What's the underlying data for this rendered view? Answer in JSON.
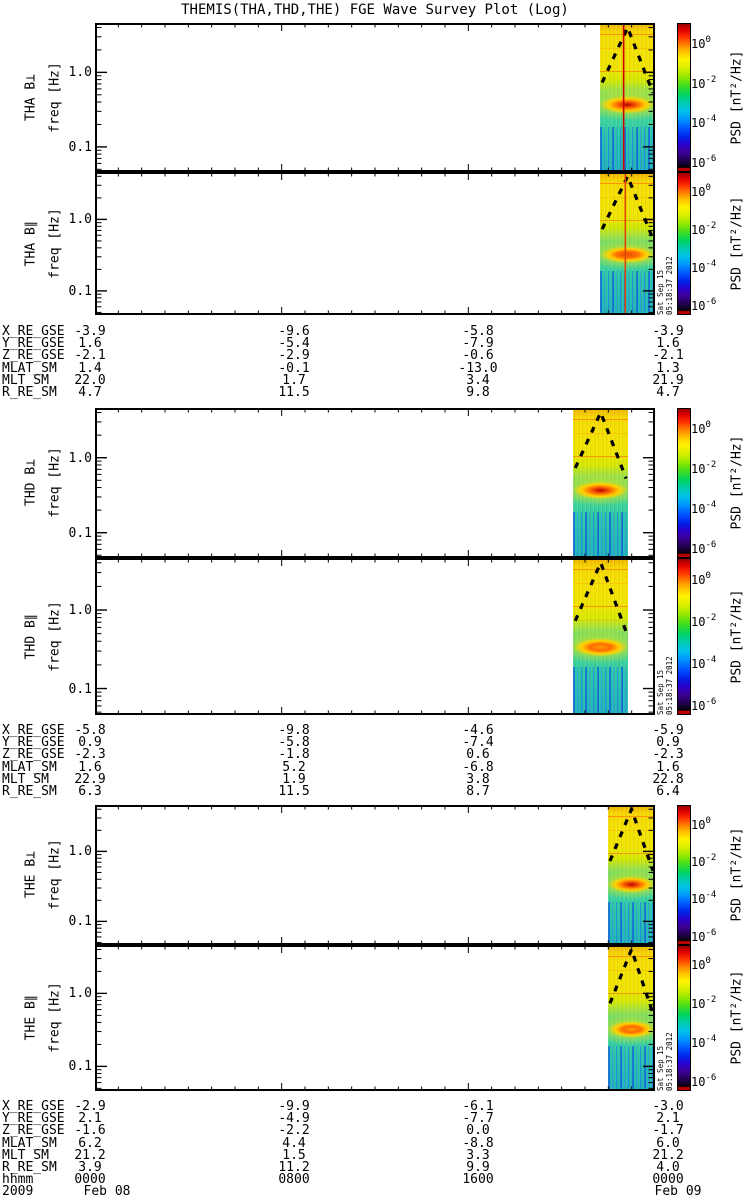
{
  "title": "THEMIS(THA,THD,THE) FGE Wave Survey Plot (Log)",
  "colors": {
    "background": "#ffffff",
    "axis": "#000000",
    "text": "#000000",
    "fci_overlay_line": "#000000"
  },
  "chart_data": {
    "type": "heatmap",
    "title": "THEMIS(THA,THD,THE) FGE Wave Survey Plot (Log)",
    "panels": [
      {
        "id": "tha-bperp",
        "probe": "THA",
        "component": "B⊥",
        "panel_label": "THA B⊥",
        "freq_label": "freq [Hz]",
        "time_coverage_frac": [
          0.902,
          1.0
        ],
        "wave_blob": {
          "y_frac": 0.55,
          "freq_hz": 0.33,
          "strength": "strong"
        },
        "marker_line": {
          "x_frac": 0.944,
          "color": "#cc0000"
        },
        "timestamp": ""
      },
      {
        "id": "tha-bpar",
        "probe": "THA",
        "component": "B∥",
        "panel_label": "THA B∥",
        "freq_label": "freq [Hz]",
        "time_coverage_frac": [
          0.902,
          1.0
        ],
        "wave_blob": {
          "y_frac": 0.58,
          "freq_hz": 0.3,
          "strength": "medium"
        },
        "marker_line": {
          "x_frac": 0.947,
          "color": "#dd4400"
        },
        "timestamp": "Sat Sep 15 05:18:37 2012"
      },
      {
        "id": "thd-bperp",
        "probe": "THD",
        "component": "B⊥",
        "panel_label": "THD B⊥",
        "freq_label": "freq [Hz]",
        "time_coverage_frac": [
          0.854,
          0.952
        ],
        "wave_blob": {
          "y_frac": 0.55,
          "freq_hz": 0.33,
          "strength": "strong"
        },
        "marker_line": null,
        "timestamp": ""
      },
      {
        "id": "thd-bpar",
        "probe": "THD",
        "component": "B∥",
        "panel_label": "THD B∥",
        "freq_label": "freq [Hz]",
        "time_coverage_frac": [
          0.854,
          0.952
        ],
        "wave_blob": {
          "y_frac": 0.57,
          "freq_hz": 0.31,
          "strength": "weak"
        },
        "marker_line": null,
        "timestamp": "Sat Sep 15 05:18:37 2012"
      },
      {
        "id": "the-bperp",
        "probe": "THE",
        "component": "B⊥",
        "panel_label": "THE B⊥",
        "freq_label": "freq [Hz]",
        "time_coverage_frac": [
          0.916,
          1.0
        ],
        "wave_blob": {
          "y_frac": 0.57,
          "freq_hz": 0.31,
          "strength": "strong"
        },
        "marker_line": null,
        "timestamp": ""
      },
      {
        "id": "the-bpar",
        "probe": "THE",
        "component": "B∥",
        "panel_label": "THE B∥",
        "freq_label": "freq [Hz]",
        "time_coverage_frac": [
          0.916,
          1.0
        ],
        "wave_blob": {
          "y_frac": 0.58,
          "freq_hz": 0.3,
          "strength": "weak"
        },
        "marker_line": null,
        "timestamp": "Sat Sep 15 05:18:37 2012"
      }
    ],
    "freq_axis": {
      "label": "freq [Hz]",
      "scale": "log",
      "range_hz": [
        0.046,
        4.6
      ],
      "major_ticks": [
        {
          "value": 1.0,
          "label": "1.0"
        },
        {
          "value": 0.1,
          "label": "0.1"
        }
      ],
      "minor_tick_values": [
        4,
        3,
        2,
        0.9,
        0.8,
        0.7,
        0.6,
        0.5,
        0.4,
        0.3,
        0.2,
        0.09,
        0.08,
        0.07,
        0.06,
        0.05
      ]
    },
    "time_axis": {
      "span_hours": 24,
      "major_tick_hours": [
        0,
        8,
        16,
        24
      ],
      "minor_tick_step_hours": 1,
      "hhmm_label": "hhmm",
      "hhmm_values": [
        "0000",
        "0800",
        "1600",
        "0000"
      ],
      "year_label": "2009",
      "date_labels": [
        "Feb 08",
        "Feb 09"
      ]
    },
    "colorbar": {
      "label": "PSD [nT²/Hz]",
      "exp_top": 1,
      "exp_bottom": -6.5,
      "ticks": [
        {
          "mantissa": "10",
          "exp": "0"
        },
        {
          "mantissa": "10",
          "exp": "-2"
        },
        {
          "mantissa": "10",
          "exp": "-4"
        },
        {
          "mantissa": "10",
          "exp": "-6"
        }
      ],
      "colormap_stops": [
        "#990000 0%",
        "#e00000 4%",
        "#ff3300 9%",
        "#ff7f00 14%",
        "#ffc200 19%",
        "#fff200 24%",
        "#d8ef00 30%",
        "#93e800 36%",
        "#3fdd1e 42%",
        "#00d460 48%",
        "#00ccaa 53%",
        "#00c3e8 59%",
        "#0095ff 65%",
        "#0055ff 71%",
        "#0022e8 77%",
        "#2b00cc 82%",
        "#3d0099 87%",
        "#2b0066 91%",
        "#150033 95%",
        "#000000 97.5%",
        "#bb0000 98.2%",
        "#bb0000 100%"
      ]
    },
    "ephemeris_tables": [
      {
        "section": "THA",
        "rows": [
          {
            "label": "X_RE_GSE",
            "values": [
              "-3.9",
              "-9.6",
              "-5.8",
              "-3.9"
            ]
          },
          {
            "label": "Y_RE_GSE",
            "values": [
              "1.6",
              "-5.4",
              "-7.9",
              "1.6"
            ]
          },
          {
            "label": "Z_RE_GSE",
            "values": [
              "-2.1",
              "-2.9",
              "-0.6",
              "-2.1"
            ]
          },
          {
            "label": "MLAT_SM",
            "values": [
              "1.4",
              "-0.1",
              "-13.0",
              "1.3"
            ]
          },
          {
            "label": "MLT_SM",
            "values": [
              "22.0",
              "1.7",
              "3.4",
              "21.9"
            ]
          },
          {
            "label": "R_RE_SM",
            "values": [
              "4.7",
              "11.5",
              "9.8",
              "4.7"
            ]
          }
        ]
      },
      {
        "section": "THD",
        "rows": [
          {
            "label": "X_RE_GSE",
            "values": [
              "-5.8",
              "-9.8",
              "-4.6",
              "-5.9"
            ]
          },
          {
            "label": "Y_RE_GSE",
            "values": [
              "0.9",
              "-5.8",
              "-7.4",
              "0.9"
            ]
          },
          {
            "label": "Z_RE_GSE",
            "values": [
              "-2.3",
              "-1.8",
              "0.6",
              "-2.3"
            ]
          },
          {
            "label": "MLAT_SM",
            "values": [
              "1.6",
              "5.2",
              "-6.8",
              "1.6"
            ]
          },
          {
            "label": "MLT_SM",
            "values": [
              "22.9",
              "1.9",
              "3.8",
              "22.8"
            ]
          },
          {
            "label": "R_RE_SM",
            "values": [
              "6.3",
              "11.5",
              "8.7",
              "6.4"
            ]
          }
        ]
      },
      {
        "section": "THE",
        "rows": [
          {
            "label": "X_RE_GSE",
            "values": [
              "-2.9",
              "-9.9",
              "-6.1",
              "-3.0"
            ]
          },
          {
            "label": "Y_RE_GSE",
            "values": [
              "2.1",
              "-4.9",
              "-7.7",
              "2.1"
            ]
          },
          {
            "label": "Z_RE_GSE",
            "values": [
              "-1.6",
              "-2.2",
              "0.0",
              "-1.7"
            ]
          },
          {
            "label": "MLAT_SM",
            "values": [
              "6.2",
              "4.4",
              "-8.8",
              "6.0"
            ]
          },
          {
            "label": "MLT_SM",
            "values": [
              "21.2",
              "1.5",
              "3.3",
              "21.2"
            ]
          },
          {
            "label": "R_RE_SM",
            "values": [
              "3.9",
              "11.2",
              "9.9",
              "4.0"
            ]
          }
        ]
      }
    ]
  }
}
